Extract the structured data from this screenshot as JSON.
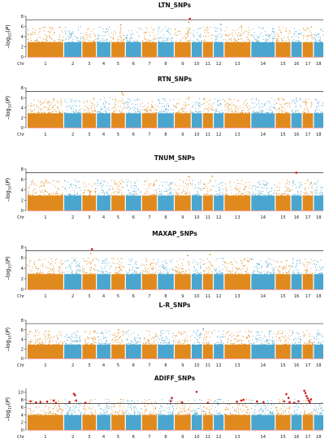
{
  "figure": {
    "background": "#ffffff"
  },
  "colors": {
    "chr_a": "#e08a1e",
    "chr_b": "#4aa6cf",
    "threshold": "#000000",
    "significant": "#d7191c",
    "baseline": "#ff5050"
  },
  "chart_data": [
    {
      "type": "scatter",
      "title": "LTN_SNPs",
      "ylabel": "-log10(P)",
      "ylim": [
        0,
        8
      ],
      "yticks": [
        0,
        2,
        4,
        6,
        8
      ],
      "threshold": 7.3,
      "chr_axis_label": "Chr",
      "chromosomes": [
        "1",
        "2",
        "3",
        "4",
        "5",
        "6",
        "7",
        "8",
        "9",
        "10",
        "11",
        "12",
        "13",
        "14",
        "15",
        "16",
        "17",
        "18"
      ],
      "chromosome_sizes": [
        1.45,
        0.7,
        0.55,
        0.55,
        0.55,
        0.62,
        0.6,
        0.65,
        0.65,
        0.42,
        0.4,
        0.4,
        1.05,
        0.95,
        0.6,
        0.42,
        0.42,
        0.38
      ],
      "series": [
        {
          "values": [
            {
              "chr": 9,
              "pos": 0.65,
              "y": 7.5
            },
            {
              "chr": 9,
              "pos": 0.6,
              "y": 6.8
            },
            {
              "chr": 5,
              "pos": 0.4,
              "y": 6.3
            },
            {
              "chr": 12,
              "pos": 0.3,
              "y": 6.4
            },
            {
              "chr": 13,
              "pos": 0.7,
              "y": 6.0
            }
          ]
        }
      ]
    },
    {
      "type": "scatter",
      "title": "RTN_SNPs",
      "ylabel": "-log10(P)",
      "ylim": [
        0,
        8
      ],
      "yticks": [
        0,
        2,
        4,
        6,
        8
      ],
      "threshold": 7.3,
      "chr_axis_label": "Chr",
      "chromosomes": [
        "1",
        "2",
        "3",
        "4",
        "5",
        "6",
        "7",
        "8",
        "9",
        "10",
        "11",
        "12",
        "13",
        "14",
        "15",
        "16",
        "17",
        "18"
      ],
      "chromosome_sizes": [
        1.45,
        0.7,
        0.55,
        0.55,
        0.55,
        0.62,
        0.6,
        0.65,
        0.65,
        0.42,
        0.4,
        0.4,
        1.05,
        0.95,
        0.6,
        0.42,
        0.42,
        0.38
      ],
      "series": [
        {
          "values": [
            {
              "chr": 18,
              "pos": 0.7,
              "y": 7.6
            },
            {
              "chr": 5,
              "pos": 0.45,
              "y": 7.0
            },
            {
              "chr": 5,
              "pos": 0.5,
              "y": 6.6
            },
            {
              "chr": 9,
              "pos": 0.6,
              "y": 6.0
            }
          ]
        }
      ]
    },
    {
      "type": "scatter",
      "title": "TNUM_SNPs",
      "ylabel": "-log10(P)",
      "ylim": [
        0,
        8
      ],
      "yticks": [
        0,
        2,
        4,
        6,
        8
      ],
      "threshold": 7.3,
      "chr_axis_label": "Chr",
      "chromosomes": [
        "1",
        "2",
        "3",
        "4",
        "5",
        "6",
        "7",
        "8",
        "9",
        "10",
        "11",
        "12",
        "13",
        "14",
        "15",
        "16",
        "17",
        "18"
      ],
      "chromosome_sizes": [
        1.45,
        0.7,
        0.55,
        0.55,
        0.55,
        0.62,
        0.6,
        0.65,
        0.65,
        0.42,
        0.4,
        0.4,
        1.05,
        0.95,
        0.6,
        0.42,
        0.42,
        0.38
      ],
      "series": [
        {
          "values": [
            {
              "chr": 15,
              "pos": 0.9,
              "y": 7.3
            },
            {
              "chr": 18,
              "pos": 0.7,
              "y": 7.3
            },
            {
              "chr": 9,
              "pos": 0.6,
              "y": 6.5
            },
            {
              "chr": 11,
              "pos": 0.4,
              "y": 6.6
            }
          ]
        }
      ]
    },
    {
      "type": "scatter",
      "title": "MAXAP_SNPs",
      "ylabel": "-log10(P)",
      "ylim": [
        0,
        8
      ],
      "yticks": [
        0,
        2,
        4,
        6,
        8
      ],
      "threshold": 7.3,
      "chr_axis_label": "Chr",
      "chromosomes": [
        "1",
        "2",
        "3",
        "4",
        "5",
        "6",
        "7",
        "8",
        "9",
        "10",
        "11",
        "12",
        "13",
        "14",
        "15",
        "16",
        "17",
        "18"
      ],
      "chromosome_sizes": [
        1.45,
        0.7,
        0.55,
        0.55,
        0.55,
        0.62,
        0.6,
        0.65,
        0.65,
        0.42,
        0.4,
        0.4,
        1.05,
        0.95,
        0.6,
        0.42,
        0.42,
        0.38
      ],
      "series": [
        {
          "values": [
            {
              "chr": 3,
              "pos": 0.4,
              "y": 7.6
            },
            {
              "chr": 3,
              "pos": 0.35,
              "y": 6.8
            },
            {
              "chr": 9,
              "pos": 0.55,
              "y": 6.4
            },
            {
              "chr": 11,
              "pos": 0.3,
              "y": 6.6
            }
          ]
        }
      ]
    },
    {
      "type": "scatter",
      "title": "L-R_SNPs",
      "ylabel": "-log10(P)",
      "ylim": [
        0,
        8
      ],
      "yticks": [
        0,
        2,
        4,
        6,
        8
      ],
      "threshold": 7.3,
      "chr_axis_label": "Chr",
      "chromosomes": [
        "1",
        "2",
        "3",
        "4",
        "5",
        "6",
        "7",
        "8",
        "9",
        "10",
        "11",
        "12",
        "13",
        "14",
        "15",
        "16",
        "17",
        "18"
      ],
      "chromosome_sizes": [
        1.45,
        0.7,
        0.55,
        0.55,
        0.55,
        0.62,
        0.6,
        0.65,
        0.65,
        0.42,
        0.4,
        0.4,
        1.05,
        0.95,
        0.6,
        0.42,
        0.42,
        0.38
      ],
      "series": [
        {
          "values": [
            {
              "chr": 5,
              "pos": 0.3,
              "y": 6.0
            },
            {
              "chr": 10,
              "pos": 0.5,
              "y": 6.2
            },
            {
              "chr": 3,
              "pos": 0.5,
              "y": 5.6
            }
          ]
        }
      ]
    },
    {
      "type": "scatter",
      "title": "ADIFF_SNPs",
      "ylabel": "-log10(P)",
      "ylim": [
        0,
        11
      ],
      "yticks": [
        0,
        2,
        4,
        6,
        8,
        10
      ],
      "threshold": 7.0,
      "chr_axis_label": "Chr",
      "chromosomes": [
        "1",
        "2",
        "3",
        "4",
        "5",
        "6",
        "7",
        "8",
        "9",
        "10",
        "11",
        "12",
        "13",
        "14",
        "15",
        "16",
        "17",
        "18"
      ],
      "chromosome_sizes": [
        1.45,
        0.7,
        0.55,
        0.55,
        0.55,
        0.62,
        0.6,
        0.65,
        0.65,
        0.42,
        0.4,
        0.4,
        1.05,
        0.95,
        0.6,
        0.42,
        0.42,
        0.38
      ],
      "series": [
        {
          "values": [
            {
              "chr": 1,
              "pos": 0.05,
              "y": 7.6
            },
            {
              "chr": 1,
              "pos": 0.3,
              "y": 7.3
            },
            {
              "chr": 1,
              "pos": 0.5,
              "y": 7.4
            },
            {
              "chr": 1,
              "pos": 0.8,
              "y": 7.5
            },
            {
              "chr": 1,
              "pos": 1.1,
              "y": 7.8
            },
            {
              "chr": 1,
              "pos": 1.2,
              "y": 7.2
            },
            {
              "chr": 2,
              "pos": 0.4,
              "y": 9.6
            },
            {
              "chr": 2,
              "pos": 0.45,
              "y": 9.2
            },
            {
              "chr": 2,
              "pos": 0.5,
              "y": 7.8
            },
            {
              "chr": 2,
              "pos": 0.2,
              "y": 7.4
            },
            {
              "chr": 3,
              "pos": 0.1,
              "y": 7.2
            },
            {
              "chr": 8,
              "pos": 0.55,
              "y": 7.6
            },
            {
              "chr": 8,
              "pos": 0.6,
              "y": 8.5
            },
            {
              "chr": 9,
              "pos": 0.3,
              "y": 7.3
            },
            {
              "chr": 10,
              "pos": 0.2,
              "y": 10.1
            },
            {
              "chr": 11,
              "pos": 0.2,
              "y": 7.2
            },
            {
              "chr": 13,
              "pos": 0.5,
              "y": 7.5
            },
            {
              "chr": 13,
              "pos": 0.7,
              "y": 7.8
            },
            {
              "chr": 13,
              "pos": 0.8,
              "y": 8.0
            },
            {
              "chr": 14,
              "pos": 0.2,
              "y": 7.6
            },
            {
              "chr": 14,
              "pos": 0.5,
              "y": 7.4
            },
            {
              "chr": 15,
              "pos": 0.35,
              "y": 7.6
            },
            {
              "chr": 15,
              "pos": 0.45,
              "y": 9.5
            },
            {
              "chr": 15,
              "pos": 0.55,
              "y": 8.5
            },
            {
              "chr": 15,
              "pos": 0.6,
              "y": 7.4
            },
            {
              "chr": 16,
              "pos": 0.1,
              "y": 7.2
            },
            {
              "chr": 16,
              "pos": 0.3,
              "y": 7.6
            },
            {
              "chr": 17,
              "pos": 0.05,
              "y": 10.4
            },
            {
              "chr": 17,
              "pos": 0.1,
              "y": 9.8
            },
            {
              "chr": 17,
              "pos": 0.15,
              "y": 9.0
            },
            {
              "chr": 17,
              "pos": 0.2,
              "y": 8.4
            },
            {
              "chr": 17,
              "pos": 0.25,
              "y": 7.8
            },
            {
              "chr": 17,
              "pos": 0.3,
              "y": 7.4
            },
            {
              "chr": 17,
              "pos": 0.35,
              "y": 8.1
            }
          ]
        }
      ]
    }
  ]
}
